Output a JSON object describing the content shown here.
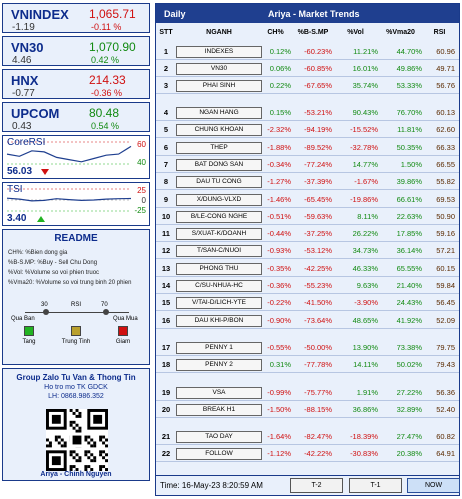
{
  "indices": [
    {
      "name": "VNINDEX",
      "value": "1,065.71",
      "change": "-1.19",
      "pct": "-0.11 %",
      "dir": "down"
    },
    {
      "name": "VN30",
      "value": "1,070.90",
      "change": "4.46",
      "pct": "0.42 %",
      "dir": "up"
    },
    {
      "name": "HNX",
      "value": "214.33",
      "change": "-0.77",
      "pct": "-0.36 %",
      "dir": "down"
    },
    {
      "name": "UPCOM",
      "value": "80.48",
      "change": "0.43",
      "pct": "0.54 %",
      "dir": "up"
    }
  ],
  "core_rsi": {
    "title": "CoreRSI",
    "value": "56.03",
    "tick_high": "60",
    "tick_low": "40",
    "trend_icon": "triangle-down-icon",
    "values": [
      49,
      47,
      52,
      51,
      46,
      44,
      42,
      45,
      48,
      49,
      56
    ]
  },
  "tsi": {
    "title": "TSI",
    "value": "3.40",
    "tick_high": "25",
    "tick_mid": "0",
    "tick_low": "-25",
    "trend_icon": "triangle-up-icon",
    "values": [
      4,
      2,
      -2,
      -1,
      3,
      1,
      -1,
      0,
      2,
      3,
      3.4
    ]
  },
  "readme": {
    "title": "README",
    "lines": [
      "CH%: %Bien dong gia",
      "%B-S.MP: %Buy - Sell Chu Dong",
      "%Vol: %Volume so voi phien truoc",
      "%Vma20: %Volume so voi trung binh 20 phien"
    ],
    "scale_labels": [
      "30",
      "RSI",
      "70"
    ],
    "scale_left": "Qua Ban",
    "scale_right": "Qua Mua",
    "legend": [
      {
        "label": "Tang",
        "color": "#22b322"
      },
      {
        "label": "Trung Tinh",
        "color": "#b9a02e"
      },
      {
        "label": "Giam",
        "color": "#d01010"
      }
    ]
  },
  "group": {
    "title": "Group Zalo Tu Van & Thong Tin",
    "line2": "Ho tro mo TK GDCK",
    "line3": "LH: 0868.986.352",
    "author": "Ariya - Chinh Nguyen"
  },
  "table": {
    "title_left": "Daily",
    "title_mid": "Ariya  -  Market Trends",
    "headers": [
      "STT",
      "NGANH",
      "CH%",
      "%B-S.MP",
      "%Vol",
      "%Vma20",
      "RSI"
    ],
    "rows": [
      {
        "stt": "1",
        "name": "INDEXES",
        "ch": "0.12%",
        "bs": "-60.23%",
        "vol": "11.21%",
        "vma": "44.70%",
        "rsi": "60.96"
      },
      {
        "stt": "2",
        "name": "VN30",
        "ch": "0.06%",
        "bs": "-60.85%",
        "vol": "16.01%",
        "vma": "49.86%",
        "rsi": "49.71"
      },
      {
        "stt": "3",
        "name": "PHAI SINH",
        "ch": "0.22%",
        "bs": "-67.65%",
        "vol": "35.74%",
        "vma": "53.33%",
        "rsi": "56.76"
      },
      {
        "stt": "4",
        "name": "NGAN HANG",
        "ch": "0.15%",
        "bs": "-53.21%",
        "vol": "90.43%",
        "vma": "76.70%",
        "rsi": "60.13"
      },
      {
        "stt": "5",
        "name": "CHUNG KHOAN",
        "ch": "-2.32%",
        "bs": "-94.19%",
        "vol": "-15.52%",
        "vma": "11.81%",
        "rsi": "62.60"
      },
      {
        "stt": "6",
        "name": "THEP",
        "ch": "-1.88%",
        "bs": "-89.52%",
        "vol": "-32.78%",
        "vma": "50.35%",
        "rsi": "66.33"
      },
      {
        "stt": "7",
        "name": "BAT DONG SAN",
        "ch": "-0.34%",
        "bs": "-77.24%",
        "vol": "14.77%",
        "vma": "1.50%",
        "rsi": "66.55"
      },
      {
        "stt": "8",
        "name": "DAU TU CONG",
        "ch": "-1.27%",
        "bs": "-37.39%",
        "vol": "-1.67%",
        "vma": "39.86%",
        "rsi": "55.82"
      },
      {
        "stt": "9",
        "name": "X/DUNG-VLXD",
        "ch": "-1.46%",
        "bs": "-65.45%",
        "vol": "-19.86%",
        "vma": "66.61%",
        "rsi": "69.53"
      },
      {
        "stt": "10",
        "name": "B/LE-CONG NGHE",
        "ch": "-0.51%",
        "bs": "-59.63%",
        "vol": "8.11%",
        "vma": "22.63%",
        "rsi": "50.90"
      },
      {
        "stt": "11",
        "name": "S/XUAT-K/DOANH",
        "ch": "-0.44%",
        "bs": "-37.25%",
        "vol": "26.22%",
        "vma": "17.85%",
        "rsi": "59.16"
      },
      {
        "stt": "12",
        "name": "T/SAN-C/NUOI",
        "ch": "-0.93%",
        "bs": "-53.12%",
        "vol": "34.73%",
        "vma": "36.14%",
        "rsi": "57.21"
      },
      {
        "stt": "13",
        "name": "PHONG THU",
        "ch": "-0.35%",
        "bs": "-42.25%",
        "vol": "46.33%",
        "vma": "65.55%",
        "rsi": "60.15"
      },
      {
        "stt": "14",
        "name": "C/SU-NHUA-HC",
        "ch": "-0.36%",
        "bs": "-55.23%",
        "vol": "9.63%",
        "vma": "21.40%",
        "rsi": "59.84"
      },
      {
        "stt": "15",
        "name": "V/TAI-D/LICH-YTE",
        "ch": "-0.22%",
        "bs": "-41.50%",
        "vol": "-3.90%",
        "vma": "24.43%",
        "rsi": "56.45"
      },
      {
        "stt": "16",
        "name": "DAU KHI-P/BON",
        "ch": "-0.90%",
        "bs": "-73.64%",
        "vol": "48.65%",
        "vma": "41.92%",
        "rsi": "52.09"
      },
      {
        "stt": "17",
        "name": "PENNY 1",
        "ch": "-0.55%",
        "bs": "-50.00%",
        "vol": "13.90%",
        "vma": "73.38%",
        "rsi": "79.75"
      },
      {
        "stt": "18",
        "name": "PENNY 2",
        "ch": "0.31%",
        "bs": "-77.78%",
        "vol": "14.11%",
        "vma": "50.02%",
        "rsi": "79.43"
      },
      {
        "stt": "19",
        "name": "VSA",
        "ch": "-0.99%",
        "bs": "-75.77%",
        "vol": "1.91%",
        "vma": "27.22%",
        "rsi": "56.36"
      },
      {
        "stt": "20",
        "name": "BREAK H1",
        "ch": "-1.50%",
        "bs": "-88.15%",
        "vol": "36.86%",
        "vma": "32.89%",
        "rsi": "52.40"
      },
      {
        "stt": "21",
        "name": "TAO DAY",
        "ch": "-1.64%",
        "bs": "-82.47%",
        "vol": "-18.39%",
        "vma": "27.47%",
        "rsi": "60.82"
      },
      {
        "stt": "22",
        "name": "FOLLOW",
        "ch": "-1.12%",
        "bs": "-42.22%",
        "vol": "-30.83%",
        "vma": "20.38%",
        "rsi": "64.91"
      }
    ]
  },
  "footer": {
    "time": "Time: 16-May-23 8:20:59 AM",
    "buttons": [
      "T-2",
      "T-1",
      "NOW"
    ],
    "active": "NOW"
  }
}
